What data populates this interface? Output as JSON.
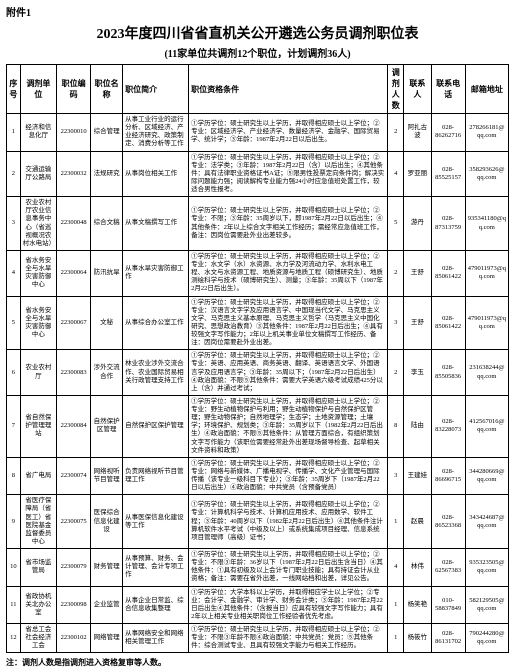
{
  "appendix": "附件1",
  "title": "2023年度四川省省直机关公开遴选公务员调剂职位表",
  "subtitle": "(11家单位共调剂12个职位，计划调剂36人)",
  "headers": {
    "seq": "序号",
    "unit": "调剂单位",
    "code": "职位编码",
    "jobname": "职位名称",
    "brief": "职位简介",
    "qual": "职位资格条件",
    "num": "调剂人数",
    "contact": "联系人",
    "phone": "联系电话",
    "email": "邮箱地址"
  },
  "rows": [
    {
      "seq": "1",
      "unit": "经济和信息化厅",
      "code": "22300010",
      "jobname": "综合管理",
      "brief": "从事工业行业的运行分析、区域经济、产业经济研究、政策制定、消费分析等工作",
      "qual": "①学历学位：硕士研究生以上学历，并取得相应硕士以上学位；②专业：区域经济学、产业经济学、数量经济学、金融学、国际贸易学、统计学；③年龄：1987年2月22日以后出生。",
      "num": "2",
      "contact": "阿扎古波",
      "phone": "028-86262716",
      "email": "278266181@qq.com"
    },
    {
      "seq": "2",
      "unit": "交通运输厅公路局",
      "code": "22300032",
      "jobname": "法规研究",
      "brief": "从事岗位相关工作",
      "qual": "①学历学位：硕士研究生以上学历，并取得相应硕士以上学位；②专业：法学类；③年龄：1987年2月22日（含）以后出生；④其他条件：具有法律职业资格证书A证；⑤限男性投票定向条件岗；解决实际问题能力强；阅读解构专业能力强24小时应急值班处置工作，较适合男性报考。",
      "num": "4",
      "contact": "罗亚丽",
      "phone": "028-85525157",
      "email": "358293626@qq.com"
    },
    {
      "seq": "3",
      "unit": "农业农村厅农业信息事务中心（省巡视概况农村水电站）",
      "code": "22300048",
      "jobname": "综合文稿",
      "brief": "从事文稿撰写工作",
      "qual": "①学历学位：硕士研究生以上学历，并取得相应硕士以上学位；②专业：不限；③年龄：35周岁以下，即1987年2月22日以后出生；④其他条件：2年以上综合文字相关工作经历；需经常应急值班工作，备注：因岗位需要赴外业出差较多。",
      "num": "5",
      "contact": "游丹",
      "phone": "028-87313759",
      "email": "935341180@qq.com"
    },
    {
      "seq": "4",
      "unit": "省水务安全与水旱灾害防御中心",
      "code": "22300064",
      "jobname": "防汛抗旱",
      "brief": "从事水旱灾害防御工作",
      "qual": "①学历学位：硕士研究生以上学历，并取得相应硕士以上学位；②专业：水文学（水）水资源、水力学及河流动力学、水利水电工程、水文与水资源工程、地质资源与地质工程（硕博研究生）、地质测绘科学与技术（硕博研究生）、测量；③年龄：35周以下（1987年2月22日后出生）。",
      "num": "2",
      "contact": "王舒",
      "phone": "028-85061422",
      "email": "479011973@qq.com"
    },
    {
      "seq": "5",
      "unit": "省水务安全与水旱灾害防御中心",
      "code": "22300067",
      "jobname": "文秘",
      "brief": "从事综合办公室工作",
      "qual": "①学历学位：硕士研究生以上学历，并取得相应硕士以上学位；②专业：汉语言文字学及应用语言学、中国现当代文学、马克思主义文学、马克思主义基本原理、马克思主义哲学（马克思主义中国化研究、思想政治教育）③其他条件：1987年2月22日后出生；④具有较强文字写作能力；2年以上机关事业单位文稿撰写工作经历、备注：因岗位需要赴外业出差。",
      "num": "3",
      "contact": "王舒",
      "phone": "028-85061422",
      "email": "479011973@qq.com"
    },
    {
      "seq": "6",
      "unit": "农业农村厅",
      "code": "22300083",
      "jobname": "涉外交流合作",
      "brief": "林业农业涉外交流合作、农业国际贸易相关行政管理支持工作",
      "qual": "①学历学位：硕士研究生以上学历，并取得相应硕士以上学位；②专业：英语、应用英语、商务英语、翻译、英语语言文学、外国语言学及应用语言学；③年龄：35周以下；（1987年2月22日后出生）④政治面貌：不限⑤其他条件：需要大学英语六级考试成绩425分以上（含）并通过考试；",
      "num": "2",
      "contact": "李玉",
      "phone": "028-85505836",
      "email": "231638244@qq.com"
    },
    {
      "seq": "7",
      "unit": "省自然保护管理理站",
      "code": "22300084",
      "jobname": "自然保护区管理",
      "brief": "自然保护区保护管理",
      "qual": "①学历学位：硕士研究生以上学历，并取得相应硕士以上学位；②专业：野生动植物保护与利用；野生动植物保护与自然保护区管理；野生动物保护；自然地理学；生态学；土地资源管理；土壤学；环境保护、规划类；③年龄：35周岁以下（1982年2月22日后出生）④政治面貌：不限⑤其他条件：从管理方面综合，有组织策划文字写作能力（该职位需要经常赴外出差现场督导检查、起草相关文件资料和政策）",
      "num": "8",
      "contact": "陆由",
      "phone": "028-83228073",
      "email": "412567016@qq.com"
    },
    {
      "seq": "8",
      "unit": "省广电局",
      "code": "22300074",
      "jobname": "网络视听节目管理",
      "brief": "负责网络视听节目管理工作",
      "qual": "①学历学位：硕士研究生以上学历，并取得相应硕士以上学位；②专业：网络与新媒体、广播电视学、传播学、文化产业管理与国际传播（该专业一级科目下专业）；③年龄：35周岁下（1987年2月22日以后出生）④政治面貌：中共党员（含预备党员）",
      "num": "3",
      "contact": "王建娃",
      "phone": "028-86696715",
      "email": "344280669@qq.com"
    },
    {
      "seq": "9",
      "unit": "省医疗保障局（省医工）省医院基金监督委员中心",
      "code": "22300075",
      "jobname": "医保综合信息化建设",
      "brief": "从事医保信息化建设等工作",
      "qual": "①学历学位：硕士研究生以上学历，并取得相应硕士以上学位；②专业：计算机科学与技术、计算机应用技术、应用数学、软件工程；③年龄：40周岁以下（1982年2月22日后出生）④其他条件注计算机软件水平考试（中级及以上）或系统集成项目经理、信息系统项目管理师（高级）证书；",
      "num": "1",
      "contact": "赵晨",
      "phone": "028-86523368",
      "email": "343424687@qq.com"
    },
    {
      "seq": "10",
      "unit": "省市场监管局",
      "code": "22300079",
      "jobname": "财务管理",
      "brief": "从事预算、财务、会计管理、会计专项工作",
      "qual": "①学历学位：硕士研究生以上学历，并取得相应硕士以上学位；②专业：不限③年龄：36岁以下（1987年2月22日后出生含当日）④其他条件：①具有初级及以上会计专门职业技能；具有持证会计从业资格；备注：需要在省外出差，一线网站档和出差，详见公告。",
      "num": "4",
      "contact": "林伟",
      "phone": "028-62567383",
      "email": "935323505@qq.com"
    },
    {
      "seq": "11",
      "unit": "省政协机关北办公室",
      "code": "22300098",
      "jobname": "企业监管",
      "brief": "从事企业日常监、综合信息收集整理",
      "qual": "①学历学位：大学本科以上学历，并取得相应学士以上学位；②专业：会计学、金融学、审计学、财务会计类；③年龄：1987年2月22日后出生④其他条件：（含报当日）应具有较强文字写作能力；具有2年以上相关专业相关职岗位工作经验者优先考虑。",
      "num": "1",
      "contact": "杨笑艳",
      "phone": "010-58837849",
      "email": "582129505@qq.com"
    },
    {
      "seq": "12",
      "unit": "省总工会社会经济工会",
      "code": "22300102",
      "jobname": "网络管理",
      "brief": "从事网络安全和网络相关管理工作",
      "qual": "①学历学位：硕士研究生以上学历，并取得相应硕士以上学位；②专业：不限③年龄不限④政治面貌：中共党员：党员：⑤其他条件：综合测试专业、且具有较强文字能力与相关工作经历。",
      "num": "1",
      "contact": "杨筱竹",
      "phone": "028-86131702",
      "email": "790244280@qq.com"
    }
  ],
  "footnote": "注：调剂人数是指调剂进入资格复审等人数。"
}
